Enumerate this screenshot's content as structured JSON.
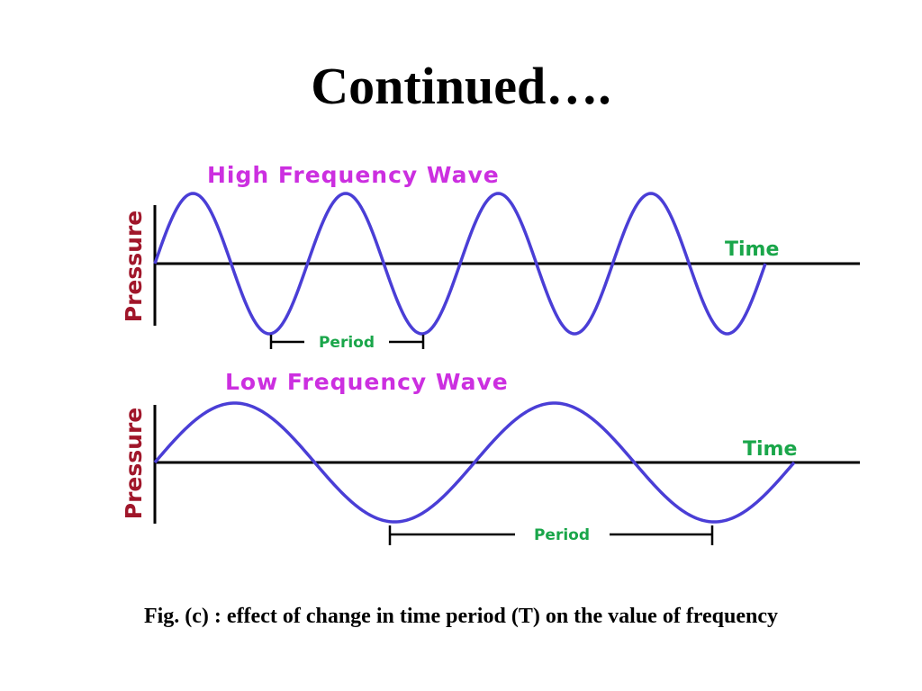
{
  "title": "Continued….",
  "colors": {
    "wave": "#4a3ed6",
    "wave_title": "#cc2fe0",
    "axis_label_y": "#a0162a",
    "axis_label_x": "#1aa64a",
    "axis": "#000000"
  },
  "high_wave": {
    "title": "High Frequency Wave",
    "y_label": "Pressure",
    "x_label": "Time",
    "period_label": "Period",
    "cycles": 4
  },
  "low_wave": {
    "title": "Low Frequency Wave",
    "y_label": "Pressure",
    "x_label": "Time",
    "period_label": "Period",
    "cycles": 2
  },
  "caption": "Fig. (c) : effect of change in time period (T) on the value of frequency"
}
